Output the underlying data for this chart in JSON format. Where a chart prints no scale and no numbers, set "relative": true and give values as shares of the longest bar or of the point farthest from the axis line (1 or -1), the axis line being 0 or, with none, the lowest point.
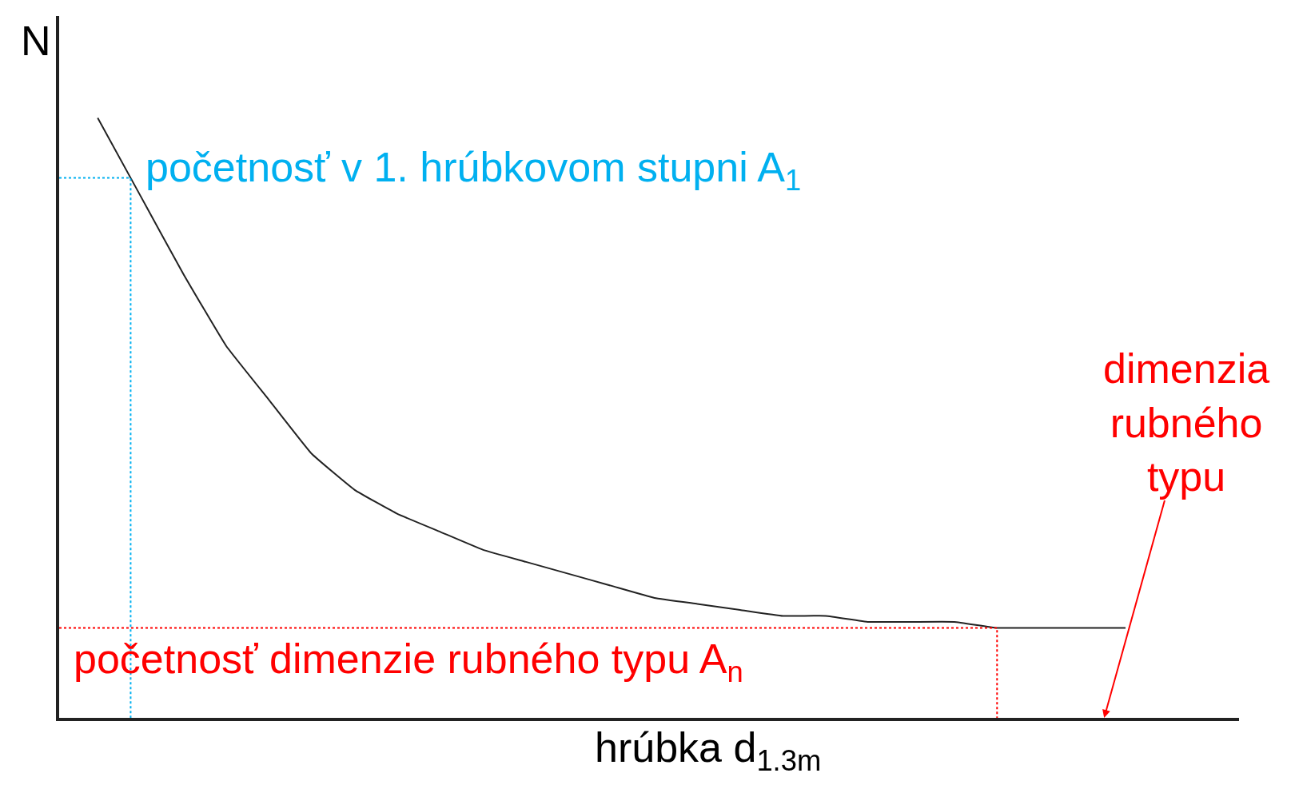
{
  "chart_data": {
    "type": "line",
    "relative": true,
    "xlabel": "hrúbka d$_{1.3m}$",
    "ylabel": "N",
    "categories": [
      null,
      null,
      null,
      null,
      null,
      null,
      null,
      null,
      null,
      null,
      null,
      null,
      null,
      null,
      null,
      null,
      null,
      null,
      null,
      null,
      null,
      null,
      null,
      null,
      null
    ],
    "series": [
      {
        "color": "#222222",
        "values": [
          1.0,
          0.87,
          0.74,
          0.62,
          0.53,
          0.44,
          0.38,
          0.34,
          0.31,
          0.28,
          0.26,
          0.24,
          0.22,
          0.2,
          0.19,
          0.18,
          0.17,
          0.17,
          0.16,
          0.16,
          0.16,
          0.15,
          0.15,
          0.15,
          0.15
        ]
      }
    ],
    "ref_lines": [
      {
        "axis": "y",
        "value": 0.9,
        "label": "početnosť v 1. hrúbkovom stupni A$_{1}$",
        "color": "#00b0f0",
        "line_style": "dotted"
      },
      {
        "axis": "y",
        "value": 0.15,
        "label": "početnosť dimenzie rubného typu A$_{n}$",
        "color": "#ff0000",
        "line_style": "dotted"
      }
    ],
    "annotations": [
      "dimenzia\nrubného\ntypu"
    ],
    "marker": "none",
    "line_style": "solid"
  }
}
